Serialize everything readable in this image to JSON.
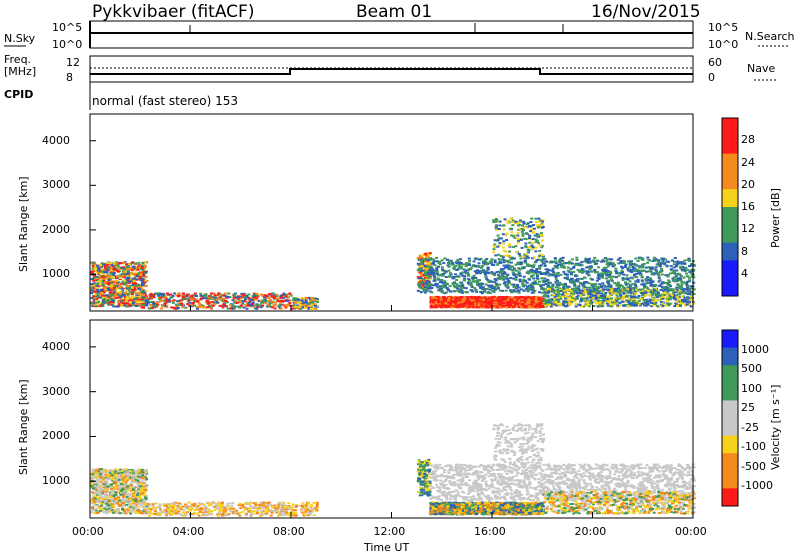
{
  "header": {
    "site": "Pykkvibaer (fitACF)",
    "beam": "Beam 01",
    "date": "16/Nov/2015"
  },
  "sky_panel": {
    "left_label": "N.Sky",
    "left_ticks": [
      "10^5",
      "10^0"
    ],
    "right_label": "N.Search",
    "right_ticks": [
      "10^5",
      "10^0"
    ]
  },
  "freq_panel": {
    "label_line1": "Freq.",
    "label_line2": "[MHz]",
    "left_ticks": [
      "12",
      "8"
    ],
    "right_label": "Nave",
    "right_ticks": [
      "60",
      "0"
    ]
  },
  "cpid": {
    "label": "CPID",
    "value": "normal (fast stereo) 153"
  },
  "colors": {
    "purple": "#1a1aff",
    "blue": "#2d60b8",
    "green": "#3f9a5a",
    "yellow": "#f7d21a",
    "orange": "#f58a1e",
    "red": "#ff1a1a",
    "grey": "#c8c8c8"
  },
  "chart_data": [
    {
      "type": "heatmap",
      "title": "",
      "ylabel": "Slant Range [km]",
      "xlabel": "",
      "x_ticks": [
        "00:00",
        "04:00",
        "08:00",
        "12:00",
        "16:00",
        "20:00",
        "00:00"
      ],
      "y_ticks": [
        "4000",
        "3000",
        "2000",
        "1000"
      ],
      "xlim": [
        0,
        24
      ],
      "ylim": [
        180,
        4600
      ],
      "colorbar": {
        "label": "Power [dB]",
        "ticks": [
          "28",
          "24",
          "20",
          "16",
          "12",
          "8",
          "4"
        ],
        "range": [
          0,
          32
        ]
      },
      "description_regions": [
        {
          "t": [
            0,
            2
          ],
          "r": [
            300,
            1200
          ],
          "level": "mixed"
        },
        {
          "t": [
            13.5,
            18
          ],
          "r": [
            300,
            500
          ],
          "level": "red"
        }
      ]
    },
    {
      "type": "heatmap",
      "title": "",
      "ylabel": "Slant Range [km]",
      "xlabel": "Time UT",
      "x_ticks": [
        "00:00",
        "04:00",
        "08:00",
        "12:00",
        "16:00",
        "20:00",
        "00:00"
      ],
      "y_ticks": [
        "4000",
        "3000",
        "2000",
        "1000"
      ],
      "xlim": [
        0,
        24
      ],
      "ylim": [
        180,
        4600
      ],
      "colorbar": {
        "label": "Velocity [m s⁻¹]",
        "ticks": [
          "1000",
          "500",
          "100",
          "25",
          "-25",
          "-100",
          "-500",
          "-1000"
        ],
        "range": [
          -1250,
          1250
        ]
      }
    }
  ]
}
